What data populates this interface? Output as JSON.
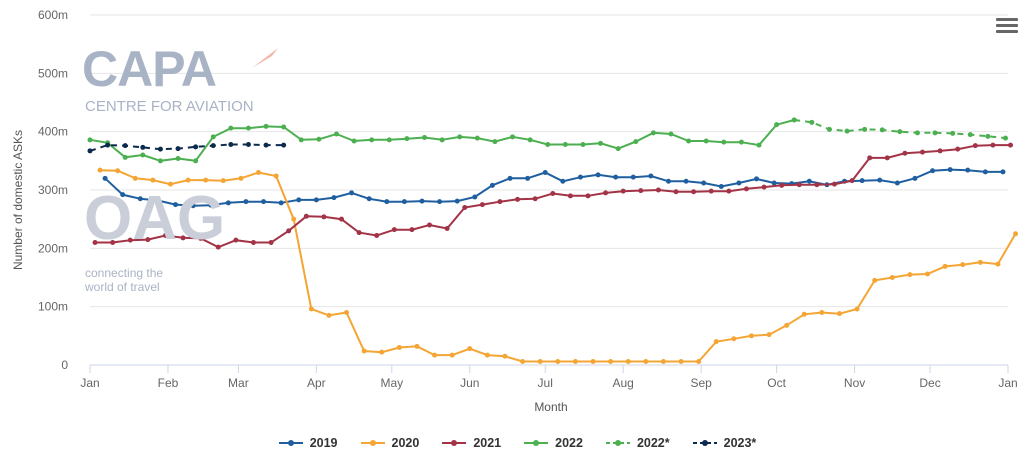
{
  "chart_data": {
    "type": "line",
    "title": "",
    "xlabel": "Month",
    "ylabel": "Number of domestic ASKs",
    "ylim": [
      0,
      600
    ],
    "yticks": [
      "0",
      "100m",
      "200m",
      "300m",
      "400m",
      "500m",
      "600m"
    ],
    "xlim": [
      1,
      366
    ],
    "x_ticks": [
      {
        "label": "Jan",
        "day": 1
      },
      {
        "label": "Feb",
        "day": 32
      },
      {
        "label": "Mar",
        "day": 60
      },
      {
        "label": "Apr",
        "day": 91
      },
      {
        "label": "May",
        "day": 121
      },
      {
        "label": "Jun",
        "day": 152
      },
      {
        "label": "Jul",
        "day": 182
      },
      {
        "label": "Aug",
        "day": 213
      },
      {
        "label": "Sep",
        "day": 244
      },
      {
        "label": "Oct",
        "day": 274
      },
      {
        "label": "Nov",
        "day": 305
      },
      {
        "label": "Dec",
        "day": 335
      },
      {
        "label": "Jan",
        "day": 366
      }
    ],
    "grid": "horizontal",
    "legend_position": "bottom",
    "series": [
      {
        "name": "2019",
        "color": "#1f5fa0",
        "dash": false,
        "start_day": 7,
        "values": [
          320,
          292,
          285,
          282,
          275,
          273,
          274,
          278,
          280,
          280,
          278,
          283,
          283,
          287,
          295,
          285,
          280,
          280,
          281,
          280,
          281,
          288,
          308,
          320,
          320,
          330,
          315,
          322,
          326,
          322,
          322,
          324,
          315,
          315,
          312,
          306,
          312,
          319,
          312,
          311,
          315,
          309,
          315,
          316,
          317,
          312,
          320,
          333,
          335,
          334,
          331,
          331
        ]
      },
      {
        "name": "2020",
        "color": "#f4a534",
        "dash": false,
        "start_day": 5,
        "values": [
          334,
          333,
          320,
          317,
          310,
          317,
          317,
          316,
          320,
          330,
          324,
          250,
          96,
          85,
          90,
          24,
          22,
          30,
          32,
          17,
          17,
          28,
          17,
          15,
          6,
          6,
          6,
          6,
          6,
          6,
          6,
          6,
          6,
          6,
          6,
          40,
          45,
          50,
          52,
          68,
          87,
          90,
          88,
          96,
          145,
          150,
          155,
          156,
          169,
          172,
          176,
          173,
          225
        ]
      },
      {
        "name": "2021",
        "color": "#a33347",
        "dash": false,
        "start_day": 3,
        "values": [
          210,
          210,
          214,
          215,
          222,
          218,
          217,
          202,
          214,
          210,
          210,
          230,
          255,
          254,
          250,
          227,
          222,
          232,
          232,
          240,
          234,
          270,
          275,
          280,
          284,
          285,
          294,
          290,
          290,
          295,
          298,
          299,
          300,
          297,
          297,
          298,
          298,
          302,
          305,
          308,
          309,
          309,
          310,
          316,
          355,
          355,
          363,
          365,
          367,
          370,
          376,
          377,
          377
        ]
      },
      {
        "name": "2022",
        "color": "#4caf50",
        "dash": false,
        "start_day": 1,
        "values": [
          386,
          381,
          356,
          360,
          350,
          354,
          350,
          391,
          406,
          406,
          409,
          408,
          386,
          387,
          396,
          384,
          386,
          386,
          388,
          390,
          386,
          391,
          389,
          383,
          391,
          386,
          378,
          378,
          378,
          380,
          371,
          383,
          398,
          396,
          384,
          384,
          382,
          382,
          377,
          412,
          420
        ]
      },
      {
        "name": "2022*",
        "color": "#4caf50",
        "dash": true,
        "start_day": 281,
        "values": [
          420,
          416,
          404,
          401,
          404,
          403,
          400,
          398,
          398,
          397,
          395,
          392,
          389
        ]
      },
      {
        "name": "2023*",
        "color": "#0c2a4d",
        "dash": true,
        "start_day": 1,
        "values": [
          367,
          377,
          376,
          373,
          370,
          371,
          374,
          376,
          378,
          378,
          377,
          377
        ]
      }
    ]
  },
  "watermarks": {
    "capa_logo": "CAPA",
    "capa_sub": "CENTRE FOR AVIATION",
    "oag_logo": "OAG",
    "oag_tag1": "connecting the",
    "oag_tag2": "world of travel"
  },
  "menu_icon": "hamburger-menu-icon"
}
